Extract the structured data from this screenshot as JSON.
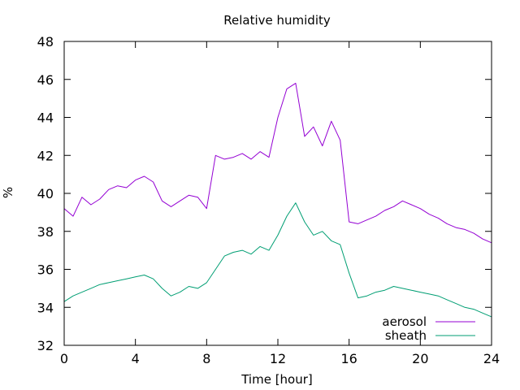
{
  "chart_data": {
    "type": "line",
    "title": "Relative humidity",
    "xlabel": "Time [hour]",
    "ylabel": "%",
    "xlim": [
      0,
      24
    ],
    "ylim": [
      32,
      48
    ],
    "xticks": [
      0,
      4,
      8,
      12,
      16,
      20,
      24
    ],
    "yticks": [
      32,
      34,
      36,
      38,
      40,
      42,
      44,
      46,
      48
    ],
    "grid": false,
    "legend_position": "bottom-right",
    "series": [
      {
        "name": "aerosol",
        "color": "#9400d3",
        "x": [
          0,
          0.5,
          1,
          1.5,
          2,
          2.5,
          3,
          3.5,
          4,
          4.5,
          5,
          5.5,
          6,
          6.5,
          7,
          7.5,
          8,
          8.5,
          9,
          9.5,
          10,
          10.5,
          11,
          11.5,
          12,
          12.5,
          13,
          13.5,
          14,
          14.5,
          15,
          15.5,
          16,
          16.5,
          17,
          17.5,
          18,
          18.5,
          19,
          19.5,
          20,
          20.5,
          21,
          21.5,
          22,
          22.5,
          23,
          23.5,
          24
        ],
        "y": [
          39.2,
          38.8,
          39.8,
          39.4,
          39.7,
          40.2,
          40.4,
          40.3,
          40.7,
          40.9,
          40.6,
          39.6,
          39.3,
          39.6,
          39.9,
          39.8,
          39.2,
          42.0,
          41.8,
          41.9,
          42.1,
          41.8,
          42.2,
          41.9,
          44.0,
          45.5,
          45.8,
          43.0,
          43.5,
          42.5,
          43.8,
          42.8,
          38.5,
          38.4,
          38.6,
          38.8,
          39.1,
          39.3,
          39.6,
          39.4,
          39.2,
          38.9,
          38.7,
          38.4,
          38.2,
          38.1,
          37.9,
          37.6,
          37.4
        ]
      },
      {
        "name": "sheath",
        "color": "#009e73",
        "x": [
          0,
          0.5,
          1,
          1.5,
          2,
          2.5,
          3,
          3.5,
          4,
          4.5,
          5,
          5.5,
          6,
          6.5,
          7,
          7.5,
          8,
          8.5,
          9,
          9.5,
          10,
          10.5,
          11,
          11.5,
          12,
          12.5,
          13,
          13.5,
          14,
          14.5,
          15,
          15.5,
          16,
          16.5,
          17,
          17.5,
          18,
          18.5,
          19,
          19.5,
          20,
          20.5,
          21,
          21.5,
          22,
          22.5,
          23,
          23.5,
          24
        ],
        "y": [
          34.3,
          34.6,
          34.8,
          35.0,
          35.2,
          35.3,
          35.4,
          35.5,
          35.6,
          35.7,
          35.5,
          35.0,
          34.6,
          34.8,
          35.1,
          35.0,
          35.3,
          36.0,
          36.7,
          36.9,
          37.0,
          36.8,
          37.2,
          37.0,
          37.8,
          38.8,
          39.5,
          38.5,
          37.8,
          38.0,
          37.5,
          37.3,
          35.8,
          34.5,
          34.6,
          34.8,
          34.9,
          35.1,
          35.0,
          34.9,
          34.8,
          34.7,
          34.6,
          34.4,
          34.2,
          34.0,
          33.9,
          33.7,
          33.5
        ]
      }
    ]
  }
}
